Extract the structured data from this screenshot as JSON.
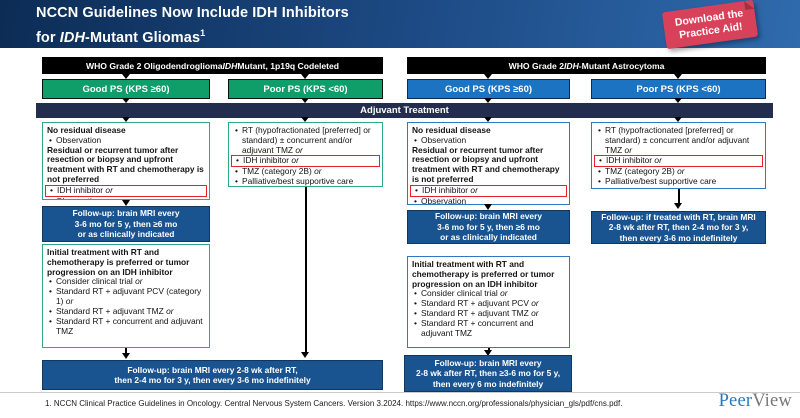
{
  "header": {
    "title_line1": [
      {
        "t": "NCCN Guidelines Now Include IDH Inhibitors"
      }
    ],
    "title_line2": [
      {
        "t": "for "
      },
      {
        "t": "IDH",
        "i": true
      },
      {
        "t": "-Mutant Gliomas"
      },
      {
        "t": "1",
        "sup": true
      }
    ],
    "badge": {
      "line1": "Download the",
      "line2": "Practice Aid!"
    }
  },
  "banner": {
    "label": "Adjuvant Treatment"
  },
  "groups": [
    {
      "id": "oligodendroglioma",
      "header_segments": [
        {
          "t": "WHO Grade 2 Oligodendroglioma "
        },
        {
          "t": "IDH",
          "i": true
        },
        {
          "t": " Mutant, 1p19q Codeleted"
        }
      ],
      "good_label": "Good PS (KPS ≥60)",
      "poor_label": "Poor PS (KPS <60)"
    },
    {
      "id": "astrocytoma",
      "header_segments": [
        {
          "t": "WHO Grade 2 "
        },
        {
          "t": "IDH",
          "i": true
        },
        {
          "t": "-Mutant Astrocytoma"
        }
      ],
      "good_label": "Good PS (KPS ≥60)",
      "poor_label": "Poor PS (KPS <60)"
    }
  ],
  "boxes": {
    "oligo_good_treatment": {
      "lines": [
        {
          "t": "No residual disease",
          "bold": true
        },
        {
          "t": "Observation",
          "bullet": true
        },
        {
          "t": "Residual or recurrent tumor after resection or biopsy and upfront treatment with RT and chemotherapy is not preferred",
          "bold": true
        },
        {
          "t": "IDH inhibitor",
          "bullet": true,
          "or": true,
          "hl": true
        },
        {
          "t": "Observation",
          "bullet": true
        }
      ]
    },
    "oligo_good_followup1": {
      "lines": [
        "Follow-up: brain MRI every",
        "3-6 mo for 5 y, then ≥6 mo",
        "or as clinically indicated"
      ]
    },
    "oligo_good_initial": {
      "lines": [
        {
          "t": "Initial treatment with RT and chemotherapy is preferred or tumor progression on an IDH inhibitor",
          "bold": true
        },
        {
          "t": "Consider clinical trial",
          "bullet": true,
          "or": true
        },
        {
          "t": "Standard RT + adjuvant PCV (category 1)",
          "bullet": true,
          "or": true
        },
        {
          "t": "Standard RT + adjuvant TMZ",
          "bullet": true,
          "or": true
        },
        {
          "t": "Standard RT + concurrent and adjuvant TMZ",
          "bullet": true
        }
      ]
    },
    "oligo_poor_treatment": {
      "lines": [
        {
          "t": "RT (hypofractionated [preferred] or standard) ± concurrent and/or adjuvant TMZ",
          "bullet": true,
          "or": true
        },
        {
          "t": "IDH inhibitor",
          "bullet": true,
          "or": true,
          "hl": true
        },
        {
          "t": "TMZ (category 2B)",
          "bullet": true,
          "or": true
        },
        {
          "t": "Palliative/best supportive care",
          "bullet": true
        }
      ]
    },
    "oligo_bottom_followup": {
      "lines": [
        "Follow-up: brain MRI every 2-8 wk after RT,",
        "then 2-4 mo for 3 y, then every 3-6 mo indefinitely"
      ]
    },
    "astro_good_treatment": {
      "lines": [
        {
          "t": "No residual disease",
          "bold": true
        },
        {
          "t": "Observation",
          "bullet": true
        },
        {
          "t": "Residual or recurrent tumor after resection or biopsy and upfront treatment with RT and chemotherapy is not preferred",
          "bold": true
        },
        {
          "t": "IDH inhibitor",
          "bullet": true,
          "or": true,
          "hl": true
        },
        {
          "t": "Observation",
          "bullet": true
        }
      ]
    },
    "astro_good_followup1": {
      "lines": [
        "Follow-up: brain MRI every",
        "3-6 mo for 5 y, then ≥6 mo",
        "or as clinically indicated"
      ]
    },
    "astro_good_initial": {
      "lines": [
        {
          "t": "Initial treatment with RT and chemotherapy is preferred or tumor progression on an IDH inhibitor",
          "bold": true
        },
        {
          "t": "Consider clinical trial",
          "bullet": true,
          "or": true
        },
        {
          "t": "Standard RT + adjuvant PCV",
          "bullet": true,
          "or": true
        },
        {
          "t": "Standard RT + adjuvant TMZ",
          "bullet": true,
          "or": true
        },
        {
          "t": "Standard RT + concurrent and adjuvant TMZ",
          "bullet": true
        }
      ]
    },
    "astro_good_followup2": {
      "lines": [
        "Follow-up: brain MRI every",
        "2-8 wk after RT, then ≥3-6 mo for 5 y,",
        "then every 6 mo indefinitely"
      ]
    },
    "astro_poor_treatment": {
      "lines": [
        {
          "t": "RT (hypofractionated [preferred] or standard) ± concurrent and/or adjuvant TMZ",
          "bullet": true,
          "or": true
        },
        {
          "t": "IDH inhibitor",
          "bullet": true,
          "or": true,
          "hl": true
        },
        {
          "t": "TMZ (category 2B)",
          "bullet": true,
          "or": true
        },
        {
          "t": "Palliative/best supportive care",
          "bullet": true
        }
      ]
    },
    "astro_poor_followup": {
      "lines": [
        "Follow-up: if treated with RT, brain MRI",
        "2-8 wk after RT, then 2-4 mo for 3 y,",
        "then every 3-6 mo indefinitely"
      ]
    }
  },
  "footer": {
    "citation": "1. NCCN Clinical Practice Guidelines in Oncology. Central Nervous System Cancers. Version 3.2024. https://www.nccn.org/professionals/physician_gls/pdf/cns.pdf.",
    "logo_peer": "Peer",
    "logo_view": "View"
  },
  "colors": {
    "header_gradient_start": "#0C2C55",
    "header_gradient_end": "#2F6BAD",
    "badge_red": "#D8415A",
    "oligo_green": "#0F9D6A",
    "astro_blue": "#1B73C1",
    "banner_navy": "#232E4E",
    "followup_blue": "#1A5490",
    "highlight_red": "#E8202C"
  }
}
